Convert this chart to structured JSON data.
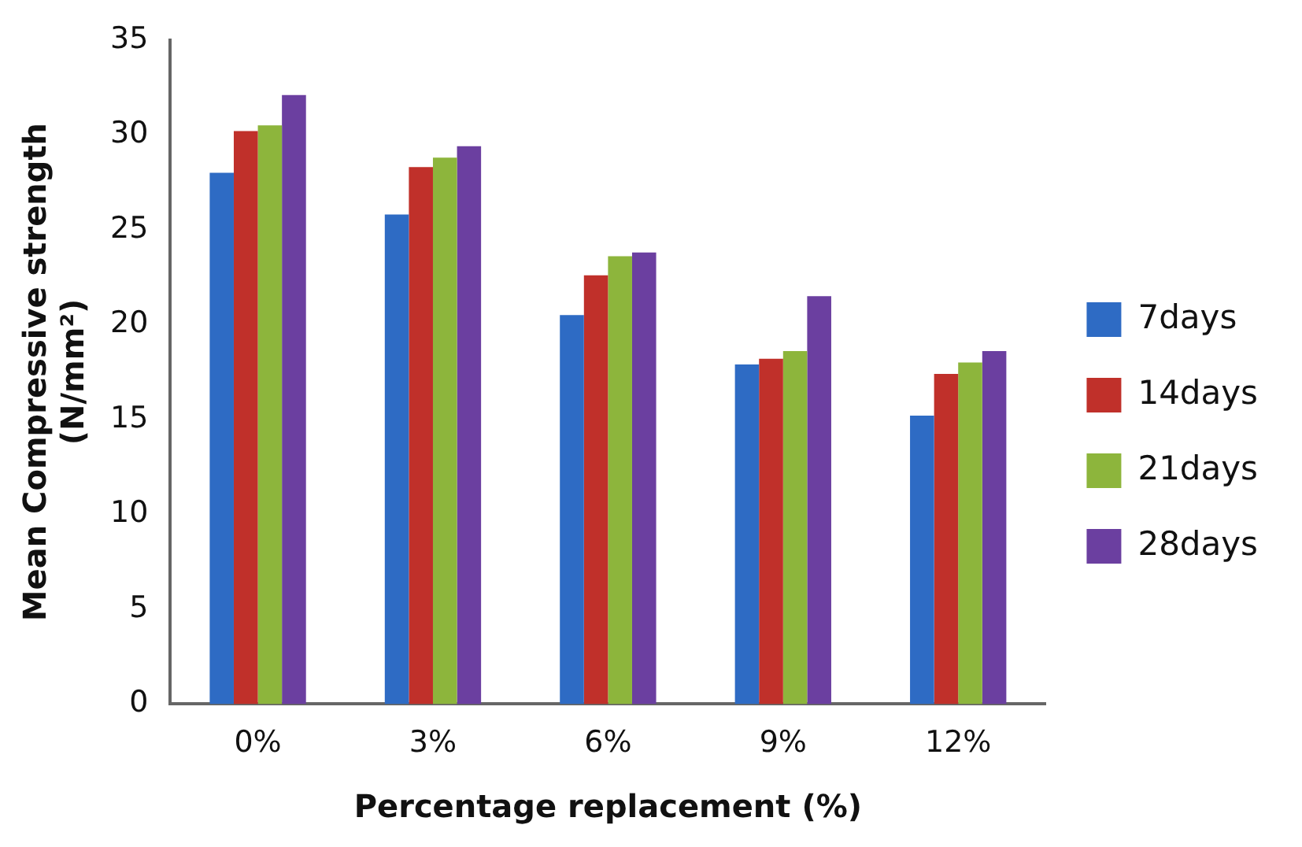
{
  "chart_data": {
    "type": "bar",
    "xlabel": "Percentage replacement (%)",
    "ylabel": "Mean Compressive strength (N/mm²)",
    "categories": [
      "0%",
      "3%",
      "6%",
      "9%",
      "12%"
    ],
    "series": [
      {
        "name": "7days",
        "color": "#2e6bc4",
        "values": [
          28.0,
          25.8,
          20.5,
          17.9,
          15.2
        ]
      },
      {
        "name": "14days",
        "color": "#c0302a",
        "values": [
          30.2,
          28.3,
          22.6,
          18.2,
          17.4
        ]
      },
      {
        "name": "21days",
        "color": "#8db53c",
        "values": [
          30.5,
          28.8,
          23.6,
          18.6,
          18.0
        ]
      },
      {
        "name": "28days",
        "color": "#6b3fa0",
        "values": [
          32.1,
          29.4,
          23.8,
          21.5,
          18.6
        ]
      }
    ],
    "ylim": [
      0,
      35
    ],
    "yticks": [
      0,
      5,
      10,
      15,
      20,
      25,
      30,
      35
    ],
    "grid": false,
    "legend": "right"
  }
}
